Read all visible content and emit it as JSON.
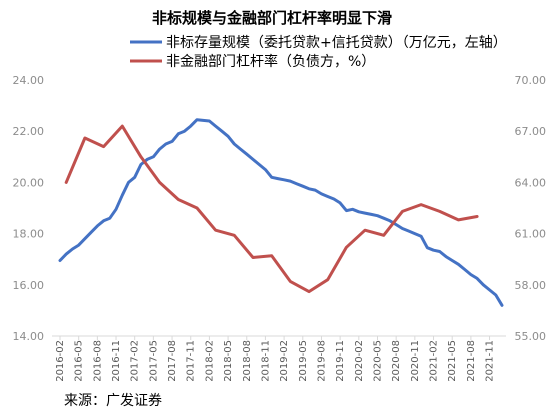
{
  "chart_data": {
    "type": "line",
    "title": "非标规模与金融部门杠杆率明显下滑",
    "source": "来源：广发证券",
    "x_ticks": [
      "2016-02",
      "2016-05",
      "2016-08",
      "2016-11",
      "2017-02",
      "2017-05",
      "2017-08",
      "2017-11",
      "2018-02",
      "2018-05",
      "2018-08",
      "2018-11",
      "2019-02",
      "2019-05",
      "2019-08",
      "2019-11",
      "2020-02",
      "2020-05",
      "2020-08",
      "2020-11",
      "2021-02",
      "2021-05",
      "2021-08",
      "2021-11"
    ],
    "y_left": {
      "min": 14,
      "max": 24,
      "ticks": [
        "14.00",
        "16.00",
        "18.00",
        "20.00",
        "22.00",
        "24.00"
      ]
    },
    "y_right": {
      "min": 55,
      "max": 70,
      "ticks": [
        "55.00",
        "58.00",
        "61.00",
        "64.00",
        "67.00",
        "70.00"
      ]
    },
    "legend_position": "top",
    "grid": false,
    "series": [
      {
        "name": "非标存量规模（委托贷款+信托贷款）（万亿元，左轴）",
        "axis": "left",
        "color": "#4472c4",
        "x": [
          "2016-02",
          "2016-03",
          "2016-04",
          "2016-05",
          "2016-06",
          "2016-07",
          "2016-08",
          "2016-09",
          "2016-10",
          "2016-11",
          "2016-12",
          "2017-01",
          "2017-02",
          "2017-03",
          "2017-04",
          "2017-05",
          "2017-06",
          "2017-07",
          "2017-08",
          "2017-09",
          "2017-10",
          "2017-11",
          "2017-12",
          "2018-01",
          "2018-02",
          "2018-03",
          "2018-04",
          "2018-05",
          "2018-06",
          "2018-07",
          "2018-08",
          "2018-09",
          "2018-10",
          "2018-11",
          "2018-12",
          "2019-01",
          "2019-02",
          "2019-03",
          "2019-04",
          "2019-05",
          "2019-06",
          "2019-07",
          "2019-08",
          "2019-09",
          "2019-10",
          "2019-11",
          "2019-12",
          "2020-01",
          "2020-02",
          "2020-03",
          "2020-04",
          "2020-05",
          "2020-06",
          "2020-07",
          "2020-08",
          "2020-09",
          "2020-10",
          "2020-11",
          "2020-12",
          "2021-01",
          "2021-02",
          "2021-03",
          "2021-04",
          "2021-05",
          "2021-06",
          "2021-07",
          "2021-08",
          "2021-09",
          "2021-10",
          "2021-11",
          "2021-12",
          "2022-01"
        ],
        "values": [
          16.95,
          17.2,
          17.4,
          17.55,
          17.8,
          18.05,
          18.3,
          18.5,
          18.6,
          18.95,
          19.5,
          20.0,
          20.2,
          20.7,
          20.9,
          21.0,
          21.3,
          21.5,
          21.6,
          21.9,
          22.0,
          22.2,
          22.45,
          22.42,
          22.4,
          22.2,
          22.0,
          21.8,
          21.5,
          21.3,
          21.1,
          20.9,
          20.7,
          20.5,
          20.2,
          20.15,
          20.1,
          20.05,
          19.95,
          19.85,
          19.75,
          19.7,
          19.55,
          19.45,
          19.35,
          19.2,
          18.9,
          18.95,
          18.85,
          18.8,
          18.75,
          18.7,
          18.6,
          18.5,
          18.35,
          18.2,
          18.1,
          18.0,
          17.9,
          17.45,
          17.35,
          17.3,
          17.1,
          16.95,
          16.8,
          16.6,
          16.4,
          16.25,
          16.0,
          15.8,
          15.6,
          15.2
        ]
      },
      {
        "name": "非金融部门杠杆率（负债方，%）",
        "axis": "right",
        "color": "#c0504d",
        "x": [
          "2016-03",
          "2016-06",
          "2016-09",
          "2016-12",
          "2017-03",
          "2017-06",
          "2017-09",
          "2017-12",
          "2018-03",
          "2018-06",
          "2018-09",
          "2018-12",
          "2019-03",
          "2019-06",
          "2019-09",
          "2019-12",
          "2020-03",
          "2020-06",
          "2020-09",
          "2020-12",
          "2021-03",
          "2021-06",
          "2021-09"
        ],
        "values": [
          64.0,
          66.6,
          66.1,
          67.3,
          65.5,
          64.0,
          63.0,
          62.5,
          61.2,
          60.9,
          59.6,
          59.7,
          58.2,
          57.6,
          58.3,
          60.2,
          61.2,
          60.9,
          62.3,
          62.7,
          62.3,
          61.8,
          62.0
        ]
      }
    ]
  }
}
